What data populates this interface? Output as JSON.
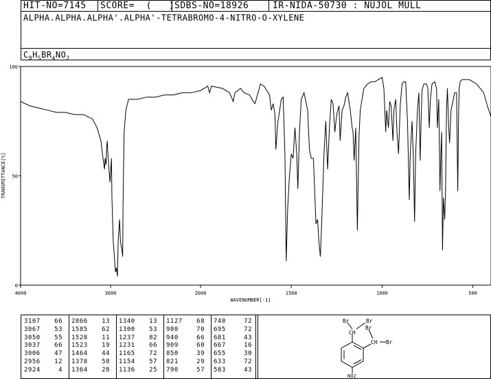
{
  "header": {
    "hit_no": "HIT-NO=7145",
    "score": "SCORE=  (   )",
    "sdbs_no": "SDBS-NO=18926",
    "ir_code": "IR-NIDA-50730 : NUJOL MULL",
    "compound_name": "ALPHA.ALPHA.ALPHA'.ALPHA'-TETRABROMO-4-NITRO-O-XYLENE",
    "formula": "C8H5BR4NO2"
  },
  "chart_data": {
    "type": "line",
    "xlabel": "WAVENUMBER[-1]",
    "ylabel": "TRANSMITTANCE[%]",
    "xlim": [
      4000,
      400
    ],
    "ylim": [
      0,
      100
    ],
    "x_ticks": [
      "4000",
      "3000",
      "2000",
      "1500",
      "1000",
      "500"
    ],
    "y_ticks": [
      "100",
      "50",
      "0"
    ],
    "grid": false,
    "series": [
      {
        "points": [
          [
            4000,
            84
          ],
          [
            3900,
            82
          ],
          [
            3800,
            81
          ],
          [
            3700,
            80
          ],
          [
            3600,
            79
          ],
          [
            3500,
            79
          ],
          [
            3400,
            78
          ],
          [
            3300,
            78
          ],
          [
            3200,
            76
          ],
          [
            3150,
            72
          ],
          [
            3107,
            66
          ],
          [
            3090,
            60
          ],
          [
            3067,
            53
          ],
          [
            3060,
            58
          ],
          [
            3050,
            55
          ],
          [
            3045,
            62
          ],
          [
            3037,
            66
          ],
          [
            3030,
            60
          ],
          [
            3006,
            47
          ],
          [
            2990,
            58
          ],
          [
            2985,
            40
          ],
          [
            2970,
            20
          ],
          [
            2956,
            12
          ],
          [
            2945,
            6
          ],
          [
            2935,
            8
          ],
          [
            2924,
            4
          ],
          [
            2915,
            20
          ],
          [
            2900,
            30
          ],
          [
            2890,
            20
          ],
          [
            2870,
            15
          ],
          [
            2866,
            13
          ],
          [
            2860,
            40
          ],
          [
            2850,
            70
          ],
          [
            2830,
            80
          ],
          [
            2800,
            85
          ],
          [
            2700,
            85
          ],
          [
            2600,
            86
          ],
          [
            2500,
            86
          ],
          [
            2400,
            87
          ],
          [
            2300,
            87
          ],
          [
            2200,
            88
          ],
          [
            2100,
            88
          ],
          [
            2000,
            89
          ],
          [
            1960,
            91
          ],
          [
            1950,
            88
          ],
          [
            1940,
            91
          ],
          [
            1880,
            90
          ],
          [
            1840,
            88
          ],
          [
            1820,
            84
          ],
          [
            1810,
            88
          ],
          [
            1780,
            90
          ],
          [
            1760,
            88
          ],
          [
            1730,
            87
          ],
          [
            1710,
            84
          ],
          [
            1700,
            83
          ],
          [
            1690,
            86
          ],
          [
            1670,
            92
          ],
          [
            1650,
            91
          ],
          [
            1620,
            87
          ],
          [
            1610,
            80
          ],
          [
            1600,
            83
          ],
          [
            1590,
            78
          ],
          [
            1585,
            62
          ],
          [
            1575,
            74
          ],
          [
            1555,
            85
          ],
          [
            1545,
            86
          ],
          [
            1535,
            60
          ],
          [
            1528,
            11
          ],
          [
            1520,
            35
          ],
          [
            1510,
            50
          ],
          [
            1500,
            60
          ],
          [
            1490,
            58
          ],
          [
            1480,
            72
          ],
          [
            1470,
            60
          ],
          [
            1464,
            44
          ],
          [
            1455,
            70
          ],
          [
            1445,
            85
          ],
          [
            1430,
            88
          ],
          [
            1410,
            80
          ],
          [
            1400,
            62
          ],
          [
            1390,
            58
          ],
          [
            1378,
            58
          ],
          [
            1370,
            40
          ],
          [
            1364,
            28
          ],
          [
            1355,
            30
          ],
          [
            1348,
            20
          ],
          [
            1340,
            13
          ],
          [
            1332,
            30
          ],
          [
            1320,
            60
          ],
          [
            1310,
            75
          ],
          [
            1300,
            53
          ],
          [
            1290,
            72
          ],
          [
            1280,
            85
          ],
          [
            1270,
            83
          ],
          [
            1260,
            70
          ],
          [
            1250,
            78
          ],
          [
            1237,
            82
          ],
          [
            1231,
            66
          ],
          [
            1220,
            80
          ],
          [
            1210,
            82
          ],
          [
            1200,
            86
          ],
          [
            1190,
            88
          ],
          [
            1175,
            80
          ],
          [
            1165,
            72
          ],
          [
            1160,
            70
          ],
          [
            1154,
            57
          ],
          [
            1145,
            72
          ],
          [
            1136,
            25
          ],
          [
            1127,
            68
          ],
          [
            1120,
            80
          ],
          [
            1100,
            90
          ],
          [
            1080,
            92
          ],
          [
            1060,
            93
          ],
          [
            1040,
            93
          ],
          [
            1020,
            94
          ],
          [
            1000,
            95
          ],
          [
            990,
            90
          ],
          [
            980,
            70
          ],
          [
            975,
            80
          ],
          [
            965,
            72
          ],
          [
            958,
            84
          ],
          [
            950,
            82
          ],
          [
            940,
            66
          ],
          [
            935,
            80
          ],
          [
            925,
            85
          ],
          [
            918,
            70
          ],
          [
            909,
            60
          ],
          [
            900,
            82
          ],
          [
            890,
            92
          ],
          [
            880,
            93
          ],
          [
            870,
            93
          ],
          [
            860,
            75
          ],
          [
            850,
            39
          ],
          [
            845,
            60
          ],
          [
            835,
            75
          ],
          [
            828,
            60
          ],
          [
            821,
            29
          ],
          [
            815,
            60
          ],
          [
            805,
            80
          ],
          [
            797,
            88
          ],
          [
            790,
            57
          ],
          [
            785,
            75
          ],
          [
            780,
            89
          ],
          [
            770,
            92
          ],
          [
            755,
            92
          ],
          [
            748,
            90
          ],
          [
            740,
            72
          ],
          [
            734,
            85
          ],
          [
            725,
            92
          ],
          [
            710,
            93
          ],
          [
            700,
            90
          ],
          [
            695,
            72
          ],
          [
            688,
            85
          ],
          [
            681,
            43
          ],
          [
            676,
            60
          ],
          [
            672,
            70
          ],
          [
            667,
            16
          ],
          [
            662,
            40
          ],
          [
            655,
            30
          ],
          [
            650,
            45
          ],
          [
            645,
            80
          ],
          [
            640,
            90
          ],
          [
            633,
            72
          ],
          [
            628,
            65
          ],
          [
            620,
            80
          ],
          [
            610,
            84
          ],
          [
            600,
            88
          ],
          [
            590,
            88
          ],
          [
            583,
            43
          ],
          [
            578,
            80
          ],
          [
            575,
            90
          ],
          [
            570,
            93
          ],
          [
            560,
            94
          ],
          [
            540,
            94
          ],
          [
            520,
            94
          ],
          [
            500,
            93
          ],
          [
            480,
            92
          ],
          [
            460,
            90
          ],
          [
            440,
            88
          ],
          [
            420,
            82
          ],
          [
            400,
            77
          ]
        ]
      }
    ],
    "peak_table": {
      "columns": [
        [
          [
            "3107",
            "66"
          ],
          [
            "3067",
            "53"
          ],
          [
            "3050",
            "55"
          ],
          [
            "3037",
            "66"
          ],
          [
            "3006",
            "47"
          ],
          [
            "2956",
            "12"
          ],
          [
            "2924",
            "4"
          ]
        ],
        [
          [
            "2866",
            "13"
          ],
          [
            "1585",
            "62"
          ],
          [
            "1528",
            "11"
          ],
          [
            "1523",
            "19"
          ],
          [
            "1464",
            "44"
          ],
          [
            "1378",
            "58"
          ],
          [
            "1364",
            "28"
          ]
        ],
        [
          [
            "1340",
            "13"
          ],
          [
            "1300",
            "53"
          ],
          [
            "1237",
            "82"
          ],
          [
            "1231",
            "66"
          ],
          [
            "1165",
            "72"
          ],
          [
            "1154",
            "57"
          ],
          [
            "1136",
            "25"
          ]
        ],
        [
          [
            "1127",
            "68"
          ],
          [
            "980",
            "70"
          ],
          [
            "940",
            "66"
          ],
          [
            "909",
            "60"
          ],
          [
            "850",
            "39"
          ],
          [
            "821",
            "29"
          ],
          [
            "790",
            "57"
          ]
        ],
        [
          [
            "740",
            "72"
          ],
          [
            "695",
            "72"
          ],
          [
            "681",
            "43"
          ],
          [
            "667",
            "16"
          ],
          [
            "655",
            "30"
          ],
          [
            "633",
            "72"
          ],
          [
            "583",
            "43"
          ]
        ]
      ]
    },
    "structure_labels": {
      "br1": "Br",
      "br2": "Br",
      "br3": "Br",
      "br4": "Br",
      "ch1": "CH",
      "ch2": "CH",
      "no2": "NO2"
    }
  }
}
